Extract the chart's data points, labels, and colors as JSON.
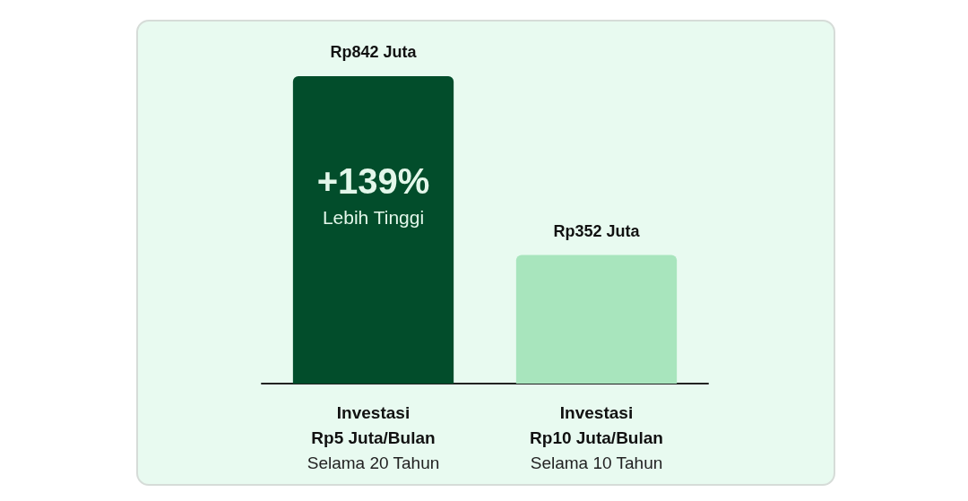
{
  "chart_data": {
    "type": "bar",
    "categories": [
      "Investasi\nRp5 Juta/Bulan\nSelama 20 Tahun",
      "Investasi\nRp10 Juta/Bulan\nSelama 10 Tahun"
    ],
    "values": [
      842,
      352
    ],
    "colors": [
      "#024d2b",
      "#a8e5bd"
    ],
    "value_labels": [
      "Rp842 Juta",
      "Rp352 Juta"
    ],
    "annotations": [
      "+139%",
      "Lebih Tinggi"
    ]
  }
}
